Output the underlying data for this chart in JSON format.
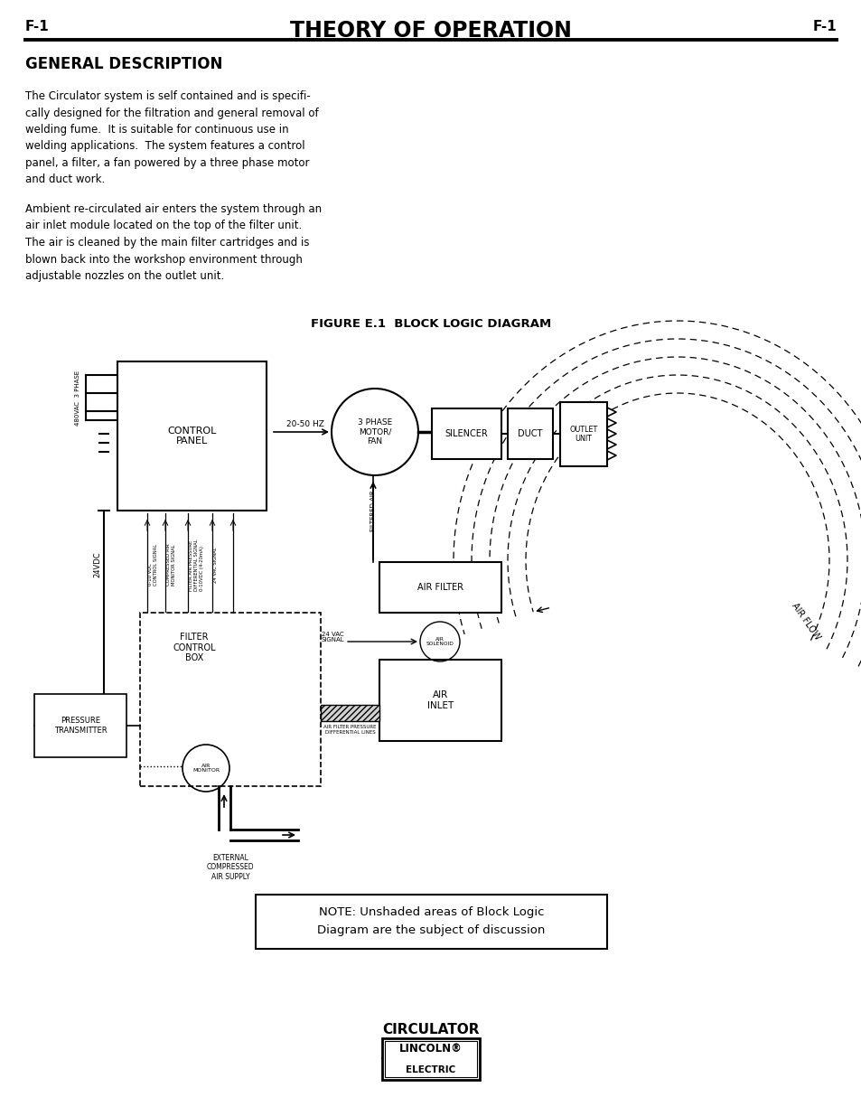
{
  "title": "THEORY OF OPERATION",
  "page_label": "F-1",
  "section_title": "GENERAL DESCRIPTION",
  "paragraph1": "The Circulator system is self contained and is specifi-\ncally designed for the filtration and general removal of\nwelding fume.  It is suitable for continuous use in\nwelding applications.  The system features a control\npanel, a filter, a fan powered by a three phase motor\nand duct work.",
  "paragraph2": "Ambient re-circulated air enters the system through an\nair inlet module located on the top of the filter unit.\nThe air is cleaned by the main filter cartridges and is\nblown back into the workshop environment through\nadjustable nozzles on the outlet unit.",
  "figure_title": "FIGURE E.1  BLOCK LOGIC DIAGRAM",
  "note_text": "NOTE: Unshaded areas of Block Logic\nDiagram are the subject of discussion",
  "footer_title": "CIRCULATOR",
  "bg_color": "#ffffff",
  "line_color": "#000000"
}
